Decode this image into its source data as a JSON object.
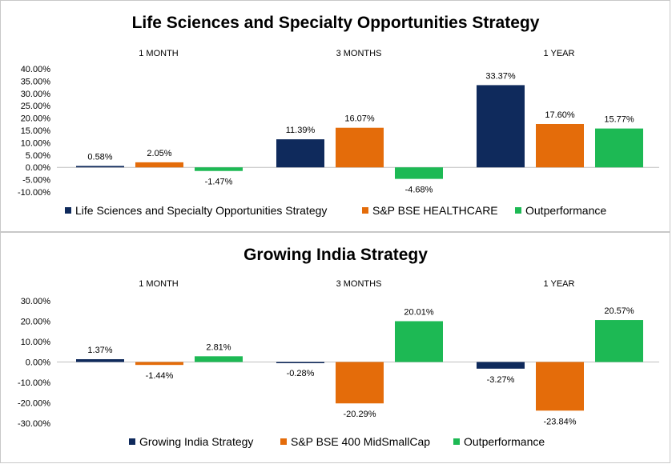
{
  "chart_data": [
    {
      "type": "bar",
      "title": "Life Sciences and Specialty Opportunities Strategy",
      "categories": [
        "1 MONTH",
        "3 MONTHS",
        "1 YEAR"
      ],
      "series": [
        {
          "name": "Life Sciences and Specialty Opportunities Strategy",
          "values": [
            0.58,
            11.39,
            33.37
          ],
          "color": "#0f2a5c"
        },
        {
          "name": "S&P BSE HEALTHCARE",
          "values": [
            2.05,
            16.07,
            17.6
          ],
          "color": "#e46c0a"
        },
        {
          "name": "Outperformance",
          "values": [
            -1.47,
            -4.68,
            15.77
          ],
          "color": "#1db954"
        }
      ],
      "value_labels": [
        [
          "0.58%",
          "11.39%",
          "33.37%"
        ],
        [
          "2.05%",
          "16.07%",
          "17.60%"
        ],
        [
          "-1.47%",
          "-4.68%",
          "15.77%"
        ]
      ],
      "yticks": [
        -10,
        -5,
        0,
        5,
        10,
        15,
        20,
        25,
        30,
        35,
        40
      ],
      "ytick_labels": [
        "-10.00%",
        "-5.00%",
        "0.00%",
        "5.00%",
        "10.00%",
        "15.00%",
        "20.00%",
        "25.00%",
        "30.00%",
        "35.00%",
        "40.00%"
      ],
      "ylim": [
        -10,
        40
      ],
      "grid": false,
      "legend_position": "bottom",
      "category_label_position": "top"
    },
    {
      "type": "bar",
      "title": "Growing India Strategy",
      "categories": [
        "1 MONTH",
        "3 MONTHS",
        "1 YEAR"
      ],
      "series": [
        {
          "name": "Growing India Strategy",
          "values": [
            1.37,
            -0.28,
            -3.27
          ],
          "color": "#0f2a5c"
        },
        {
          "name": "S&P BSE 400 MidSmallCap",
          "values": [
            -1.44,
            -20.29,
            -23.84
          ],
          "color": "#e46c0a"
        },
        {
          "name": "Outperformance",
          "values": [
            2.81,
            20.01,
            20.57
          ],
          "color": "#1db954"
        }
      ],
      "value_labels": [
        [
          "1.37%",
          "-0.28%",
          "-3.27%"
        ],
        [
          "-1.44%",
          "-20.29%",
          "-23.84%"
        ],
        [
          "2.81%",
          "20.01%",
          "20.57%"
        ]
      ],
      "yticks": [
        -30,
        -20,
        -10,
        0,
        10,
        20,
        30
      ],
      "ytick_labels": [
        "-30.00%",
        "-20.00%",
        "-10.00%",
        "0.00%",
        "10.00%",
        "20.00%",
        "30.00%"
      ],
      "ylim": [
        -30,
        30
      ],
      "grid": false,
      "legend_position": "bottom",
      "category_label_position": "top"
    }
  ]
}
